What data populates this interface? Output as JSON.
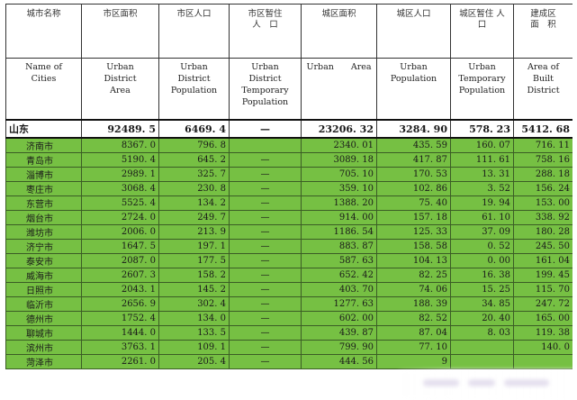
{
  "headers_cn": [
    "城市名称",
    "市区面积",
    "市区人口",
    "市区暂住\n人　口",
    "城区面积",
    "城区人口",
    "城区暂住 人\n口",
    "建成区\n面　积"
  ],
  "headers_en": [
    "Name of\nCities",
    "Urban\nDistrict\nArea",
    "Urban\nDistrict\nPopulation",
    "Urban\nDistrict\nTemporary\nPopulation",
    "Urban　　Area",
    "Urban\nPopulation",
    "Urban\nTemporary\nPopulation",
    "Area of\nBuilt\nDistrict"
  ],
  "total": [
    "山东",
    "92489. 5",
    "6469. 4",
    "—",
    "23206. 32",
    "3284. 90",
    "578. 23",
    "5412. 68"
  ],
  "rows": [
    [
      "济南市",
      "8367. 0",
      "796. 8",
      "",
      "2340. 01",
      "435. 59",
      "160. 07",
      "716. 11"
    ],
    [
      "青岛市",
      "5190. 4",
      "645. 2",
      "—",
      "3089. 18",
      "417. 87",
      "111. 61",
      "758. 16"
    ],
    [
      "淄博市",
      "2989. 1",
      "325. 7",
      "—",
      "705. 10",
      "170. 53",
      "13. 31",
      "288. 18"
    ],
    [
      "枣庄市",
      "3068. 4",
      "230. 8",
      "—",
      "359. 10",
      "102. 86",
      "3. 52",
      "156. 24"
    ],
    [
      "东营市",
      "5525. 4",
      "134. 2",
      "—",
      "1388. 20",
      "75. 40",
      "19. 94",
      "153. 00"
    ],
    [
      "烟台市",
      "2724. 0",
      "249. 7",
      "—",
      "914. 00",
      "157. 18",
      "61. 10",
      "338. 92"
    ],
    [
      "潍坊市",
      "2006. 0",
      "213. 9",
      "—",
      "1186. 54",
      "125. 33",
      "37. 09",
      "180. 28"
    ],
    [
      "济宁市",
      "1647. 5",
      "197. 1",
      "—",
      "883. 87",
      "158. 58",
      "0. 52",
      "245. 50"
    ],
    [
      "泰安市",
      "2087. 0",
      "177. 5",
      "—",
      "587. 63",
      "104. 13",
      "0. 00",
      "161. 04"
    ],
    [
      "威海市",
      "2607. 3",
      "158. 2",
      "—",
      "652. 42",
      "82. 25",
      "16. 38",
      "199. 45"
    ],
    [
      "日照市",
      "2043. 1",
      "145. 2",
      "—",
      "403. 70",
      "74. 06",
      "15. 25",
      "115. 70"
    ],
    [
      "临沂市",
      "2656. 9",
      "302. 4",
      "—",
      "1277. 63",
      "188. 39",
      "34. 85",
      "247. 72"
    ],
    [
      "德州市",
      "1752. 4",
      "134. 0",
      "—",
      "602. 00",
      "82. 52",
      "20. 40",
      "165. 00"
    ],
    [
      "聊城市",
      "1444. 0",
      "133. 5",
      "—",
      "439. 87",
      "87. 04",
      "8. 03",
      "119. 38"
    ],
    [
      "滨州市",
      "3763. 1",
      "109. 1",
      "—",
      "799. 90",
      "77. 10",
      "",
      "140. 0"
    ],
    [
      "菏泽市",
      "2261. 0",
      "205. 4",
      "—",
      "444. 56",
      "9",
      "",
      ""
    ]
  ],
  "colors": {
    "row_green": "#76c043",
    "border": "#333333"
  }
}
